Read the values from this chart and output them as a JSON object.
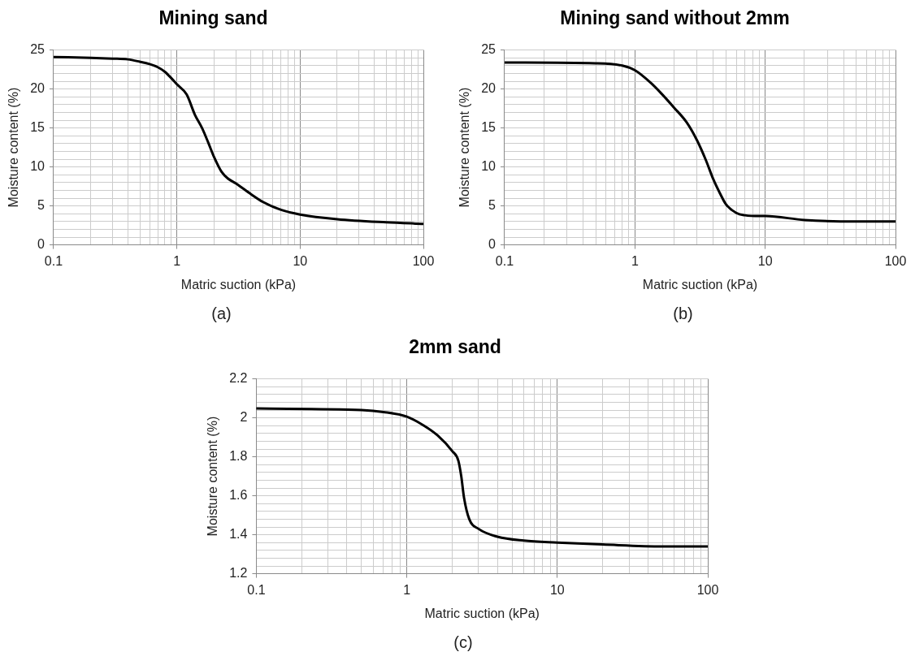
{
  "chart_data": [
    {
      "type": "line",
      "title": "Mining sand",
      "xlabel": "Matric suction (kPa)",
      "ylabel": "Moisture content (%)",
      "log": "x",
      "grid": true,
      "marker": "none",
      "line_style": "solid",
      "annotations": [
        "(a)"
      ],
      "xlim": [
        0.1,
        100
      ],
      "ylim": [
        0,
        25
      ],
      "xticks": [
        0.1,
        {
          "value": 0.2,
          "label": null
        },
        {
          "value": 0.3,
          "label": null
        },
        {
          "value": 0.4,
          "label": null
        },
        {
          "value": 0.5,
          "label": null
        },
        {
          "value": 0.6,
          "label": null
        },
        {
          "value": 0.7,
          "label": null
        },
        {
          "value": 0.8,
          "label": null
        },
        {
          "value": 0.9,
          "label": null
        },
        1,
        {
          "value": 2,
          "label": null
        },
        {
          "value": 3,
          "label": null
        },
        {
          "value": 4,
          "label": null
        },
        {
          "value": 5,
          "label": null
        },
        {
          "value": 6,
          "label": null
        },
        {
          "value": 7,
          "label": null
        },
        {
          "value": 8,
          "label": null
        },
        {
          "value": 9,
          "label": null
        },
        10,
        {
          "value": 20,
          "label": null
        },
        {
          "value": 30,
          "label": null
        },
        {
          "value": 40,
          "label": null
        },
        {
          "value": 50,
          "label": null
        },
        {
          "value": 60,
          "label": null
        },
        {
          "value": 70,
          "label": null
        },
        {
          "value": 80,
          "label": null
        },
        {
          "value": 90,
          "label": null
        },
        100
      ],
      "yticks": [
        0,
        {
          "value": 1,
          "label": null
        },
        {
          "value": 2,
          "label": null
        },
        {
          "value": 3,
          "label": null
        },
        {
          "value": 4,
          "label": null
        },
        5,
        {
          "value": 6,
          "label": null
        },
        {
          "value": 7,
          "label": null
        },
        {
          "value": 8,
          "label": null
        },
        {
          "value": 9,
          "label": null
        },
        10,
        {
          "value": 11,
          "label": null
        },
        {
          "value": 12,
          "label": null
        },
        {
          "value": 13,
          "label": null
        },
        {
          "value": 14,
          "label": null
        },
        15,
        {
          "value": 16,
          "label": null
        },
        {
          "value": 17,
          "label": null
        },
        {
          "value": 18,
          "label": null
        },
        {
          "value": 19,
          "label": null
        },
        20,
        {
          "value": 21,
          "label": null
        },
        {
          "value": 22,
          "label": null
        },
        {
          "value": 23,
          "label": null
        },
        {
          "value": 24,
          "label": null
        },
        25
      ],
      "series": [
        {
          "color": "#000000",
          "x": [
            0.1,
            0.2,
            0.3,
            0.4,
            0.5,
            0.6,
            0.7,
            0.8,
            0.9,
            1,
            1.2,
            1.4,
            1.6,
            1.8,
            2,
            2.3,
            2.6,
            3,
            4,
            5,
            7,
            10,
            20,
            50,
            100
          ],
          "values": [
            24.1,
            24.0,
            23.9,
            23.8,
            23.5,
            23.2,
            22.8,
            22.2,
            21.4,
            20.6,
            19.3,
            16.7,
            15.0,
            13.1,
            11.3,
            9.4,
            8.5,
            7.9,
            6.5,
            5.5,
            4.5,
            3.9,
            3.3,
            2.9,
            2.7
          ]
        }
      ]
    },
    {
      "type": "line",
      "title": "Mining sand without 2mm",
      "xlabel": "Matric suction (kPa)",
      "ylabel": "Moisture content (%)",
      "log": "x",
      "grid": true,
      "marker": "none",
      "line_style": "solid",
      "annotations": [
        "(b)"
      ],
      "xlim": [
        0.1,
        100
      ],
      "ylim": [
        0,
        25
      ],
      "xticks": [
        0.1,
        {
          "value": 0.2,
          "label": null
        },
        {
          "value": 0.3,
          "label": null
        },
        {
          "value": 0.4,
          "label": null
        },
        {
          "value": 0.5,
          "label": null
        },
        {
          "value": 0.6,
          "label": null
        },
        {
          "value": 0.7,
          "label": null
        },
        {
          "value": 0.8,
          "label": null
        },
        {
          "value": 0.9,
          "label": null
        },
        1,
        {
          "value": 2,
          "label": null
        },
        {
          "value": 3,
          "label": null
        },
        {
          "value": 4,
          "label": null
        },
        {
          "value": 5,
          "label": null
        },
        {
          "value": 6,
          "label": null
        },
        {
          "value": 7,
          "label": null
        },
        {
          "value": 8,
          "label": null
        },
        {
          "value": 9,
          "label": null
        },
        10,
        {
          "value": 20,
          "label": null
        },
        {
          "value": 30,
          "label": null
        },
        {
          "value": 40,
          "label": null
        },
        {
          "value": 50,
          "label": null
        },
        {
          "value": 60,
          "label": null
        },
        {
          "value": 70,
          "label": null
        },
        {
          "value": 80,
          "label": null
        },
        {
          "value": 90,
          "label": null
        },
        100
      ],
      "yticks": [
        0,
        {
          "value": 1,
          "label": null
        },
        {
          "value": 2,
          "label": null
        },
        {
          "value": 3,
          "label": null
        },
        {
          "value": 4,
          "label": null
        },
        5,
        {
          "value": 6,
          "label": null
        },
        {
          "value": 7,
          "label": null
        },
        {
          "value": 8,
          "label": null
        },
        {
          "value": 9,
          "label": null
        },
        10,
        {
          "value": 11,
          "label": null
        },
        {
          "value": 12,
          "label": null
        },
        {
          "value": 13,
          "label": null
        },
        {
          "value": 14,
          "label": null
        },
        15,
        {
          "value": 16,
          "label": null
        },
        {
          "value": 17,
          "label": null
        },
        {
          "value": 18,
          "label": null
        },
        {
          "value": 19,
          "label": null
        },
        20,
        {
          "value": 21,
          "label": null
        },
        {
          "value": 22,
          "label": null
        },
        {
          "value": 23,
          "label": null
        },
        {
          "value": 24,
          "label": null
        },
        25
      ],
      "series": [
        {
          "color": "#000000",
          "x": [
            0.1,
            0.5,
            0.8,
            1,
            1.3,
            1.6,
            2,
            2.5,
            3,
            3.5,
            4,
            4.5,
            5,
            6,
            7,
            9,
            10,
            20,
            50,
            100
          ],
          "values": [
            23.4,
            23.3,
            23.0,
            22.4,
            20.9,
            19.4,
            17.6,
            15.7,
            13.4,
            10.9,
            8.4,
            6.6,
            5.2,
            4.1,
            3.8,
            3.7,
            3.7,
            3.2,
            3.0,
            3.0
          ]
        }
      ]
    },
    {
      "type": "line",
      "title": "2mm sand",
      "xlabel": "Matric suction (kPa)",
      "ylabel": "Moisture content (%)",
      "log": "x",
      "grid": true,
      "marker": "none",
      "line_style": "solid",
      "annotations": [
        "(c)"
      ],
      "xlim": [
        0.1,
        100
      ],
      "ylim": [
        1.2,
        2.2
      ],
      "xticks": [
        0.1,
        {
          "value": 0.2,
          "label": null
        },
        {
          "value": 0.3,
          "label": null
        },
        {
          "value": 0.4,
          "label": null
        },
        {
          "value": 0.5,
          "label": null
        },
        {
          "value": 0.6,
          "label": null
        },
        {
          "value": 0.7,
          "label": null
        },
        {
          "value": 0.8,
          "label": null
        },
        {
          "value": 0.9,
          "label": null
        },
        1,
        {
          "value": 2,
          "label": null
        },
        {
          "value": 3,
          "label": null
        },
        {
          "value": 4,
          "label": null
        },
        {
          "value": 5,
          "label": null
        },
        {
          "value": 6,
          "label": null
        },
        {
          "value": 7,
          "label": null
        },
        {
          "value": 8,
          "label": null
        },
        {
          "value": 9,
          "label": null
        },
        10,
        {
          "value": 20,
          "label": null
        },
        {
          "value": 30,
          "label": null
        },
        {
          "value": 40,
          "label": null
        },
        {
          "value": 50,
          "label": null
        },
        {
          "value": 60,
          "label": null
        },
        {
          "value": 70,
          "label": null
        },
        {
          "value": 80,
          "label": null
        },
        {
          "value": 90,
          "label": null
        },
        100
      ],
      "yticks": [
        1.2,
        {
          "value": 1.24,
          "label": null
        },
        {
          "value": 1.28,
          "label": null
        },
        {
          "value": 1.32,
          "label": null
        },
        {
          "value": 1.36,
          "label": null
        },
        1.4,
        {
          "value": 1.44,
          "label": null
        },
        {
          "value": 1.48,
          "label": null
        },
        {
          "value": 1.52,
          "label": null
        },
        {
          "value": 1.56,
          "label": null
        },
        1.6,
        {
          "value": 1.64,
          "label": null
        },
        {
          "value": 1.68,
          "label": null
        },
        {
          "value": 1.72,
          "label": null
        },
        {
          "value": 1.76,
          "label": null
        },
        1.8,
        {
          "value": 1.84,
          "label": null
        },
        {
          "value": 1.88,
          "label": null
        },
        {
          "value": 1.92,
          "label": null
        },
        {
          "value": 1.96,
          "label": null
        },
        2,
        {
          "value": 2.04,
          "label": null
        },
        {
          "value": 2.08,
          "label": null
        },
        {
          "value": 2.12,
          "label": null
        },
        {
          "value": 2.16,
          "label": null
        },
        2.2
      ],
      "series": [
        {
          "color": "#000000",
          "x": [
            0.1,
            0.5,
            0.7,
            1,
            1.3,
            1.6,
            2,
            2.2,
            2.3,
            2.4,
            2.6,
            3,
            4,
            6,
            10,
            20,
            50,
            100
          ],
          "values": [
            2.048,
            2.04,
            2.03,
            2.006,
            1.96,
            1.91,
            1.83,
            1.78,
            1.7,
            1.59,
            1.48,
            1.43,
            1.39,
            1.37,
            1.36,
            1.35,
            1.34,
            1.34
          ]
        }
      ]
    }
  ]
}
